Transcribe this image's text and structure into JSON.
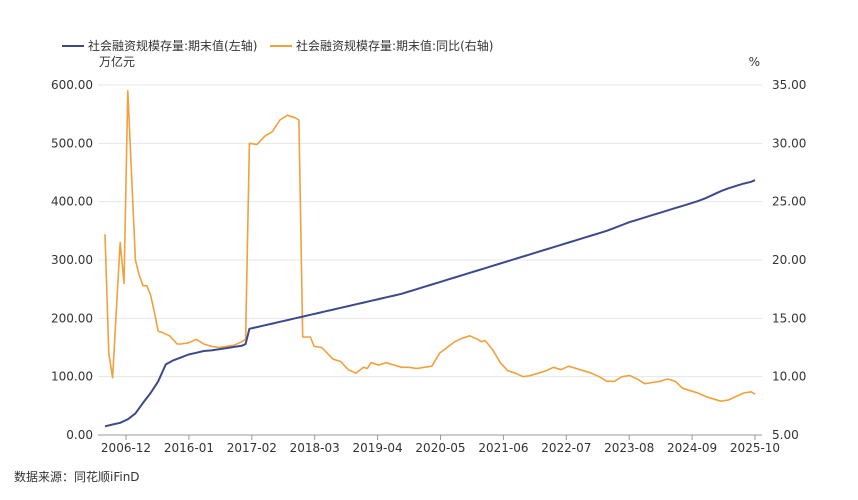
{
  "chart_data": {
    "type": "line",
    "legend": {
      "placement": "top-left",
      "items": [
        {
          "name": "社会融资规模存量:期末值(左轴)",
          "color": "#3c4a8c"
        },
        {
          "name": "社会融资规模存量:期末值:同比(右轴)",
          "color": "#f0a13c"
        }
      ]
    },
    "left_axis": {
      "unit": "万亿元",
      "ylim": [
        0,
        600
      ],
      "ticks": [
        "0.00",
        "100.00",
        "200.00",
        "300.00",
        "400.00",
        "500.00",
        "600.00"
      ]
    },
    "right_axis": {
      "unit": "%",
      "ylim": [
        5,
        35
      ],
      "ticks": [
        "5.00",
        "10.00",
        "15.00",
        "20.00",
        "25.00",
        "30.00",
        "35.00"
      ]
    },
    "x_axis": {
      "range": [
        "2002-12",
        "2025-10"
      ],
      "ticks": [
        "2006-12",
        "2016-01",
        "2017-02",
        "2018-03",
        "2019-04",
        "2020-05",
        "2021-06",
        "2022-07",
        "2023-08",
        "2024-09",
        "2025-10"
      ]
    },
    "grid": true,
    "series": [
      {
        "name": "社会融资规模存量:期末值(左轴)",
        "axis": "left",
        "color": "#3c4a8c",
        "points": [
          [
            0,
            15
          ],
          [
            2,
            18
          ],
          [
            4,
            21
          ],
          [
            6,
            27
          ],
          [
            8,
            37
          ],
          [
            10,
            55
          ],
          [
            12,
            72
          ],
          [
            14,
            92
          ],
          [
            16,
            121
          ],
          [
            18,
            128
          ],
          [
            20,
            133
          ],
          [
            22,
            138
          ],
          [
            24,
            141
          ],
          [
            26,
            144
          ],
          [
            28,
            145
          ],
          [
            30,
            147
          ],
          [
            32,
            149
          ],
          [
            34,
            151
          ],
          [
            36,
            153
          ],
          [
            37,
            156
          ],
          [
            38,
            182
          ],
          [
            40,
            185
          ],
          [
            42,
            188
          ],
          [
            44,
            191
          ],
          [
            46,
            194
          ],
          [
            48,
            197
          ],
          [
            50,
            200
          ],
          [
            52,
            203
          ],
          [
            54,
            206
          ],
          [
            56,
            209
          ],
          [
            58,
            212
          ],
          [
            60,
            215
          ],
          [
            62,
            218
          ],
          [
            64,
            221
          ],
          [
            66,
            224
          ],
          [
            68,
            227
          ],
          [
            70,
            230
          ],
          [
            72,
            233
          ],
          [
            74,
            236
          ],
          [
            76,
            239
          ],
          [
            78,
            242
          ],
          [
            80,
            246
          ],
          [
            82,
            250
          ],
          [
            84,
            254
          ],
          [
            86,
            258
          ],
          [
            88,
            262
          ],
          [
            90,
            266
          ],
          [
            92,
            270
          ],
          [
            94,
            274
          ],
          [
            96,
            278
          ],
          [
            98,
            282
          ],
          [
            100,
            286
          ],
          [
            102,
            290
          ],
          [
            104,
            294
          ],
          [
            106,
            298
          ],
          [
            108,
            302
          ],
          [
            110,
            306
          ],
          [
            112,
            310
          ],
          [
            114,
            314
          ],
          [
            116,
            318
          ],
          [
            118,
            322
          ],
          [
            120,
            326
          ],
          [
            122,
            330
          ],
          [
            124,
            334
          ],
          [
            126,
            338
          ],
          [
            128,
            342
          ],
          [
            130,
            346
          ],
          [
            132,
            350
          ],
          [
            134,
            355
          ],
          [
            136,
            360
          ],
          [
            138,
            365
          ],
          [
            140,
            369
          ],
          [
            142,
            373
          ],
          [
            144,
            377
          ],
          [
            146,
            381
          ],
          [
            148,
            385
          ],
          [
            150,
            389
          ],
          [
            152,
            393
          ],
          [
            154,
            397
          ],
          [
            156,
            401
          ],
          [
            158,
            406
          ],
          [
            160,
            412
          ],
          [
            162,
            418
          ],
          [
            164,
            423
          ],
          [
            166,
            427
          ],
          [
            168,
            431
          ],
          [
            170,
            434
          ],
          [
            171,
            437
          ]
        ]
      },
      {
        "name": "社会融资规模存量:期末值:同比(右轴)",
        "axis": "right",
        "color": "#f0a13c",
        "points": [
          [
            0,
            22.2
          ],
          [
            1,
            12.0
          ],
          [
            2,
            9.9
          ],
          [
            3,
            15.8
          ],
          [
            4,
            21.5
          ],
          [
            5,
            18.0
          ],
          [
            6,
            34.5
          ],
          [
            8,
            20.0
          ],
          [
            9,
            18.7
          ],
          [
            10,
            17.8
          ],
          [
            11,
            17.8
          ],
          [
            12,
            17.0
          ],
          [
            13,
            15.5
          ],
          [
            14,
            13.9
          ],
          [
            15,
            13.8
          ],
          [
            17,
            13.5
          ],
          [
            19,
            12.8
          ],
          [
            20,
            12.8
          ],
          [
            22,
            12.9
          ],
          [
            24,
            13.2
          ],
          [
            26,
            12.8
          ],
          [
            28,
            12.6
          ],
          [
            30,
            12.5
          ],
          [
            32,
            12.6
          ],
          [
            34,
            12.7
          ],
          [
            36,
            13.0
          ],
          [
            37,
            13.2
          ],
          [
            38,
            30.0
          ],
          [
            40,
            29.9
          ],
          [
            42,
            30.6
          ],
          [
            44,
            31.0
          ],
          [
            46,
            32.0
          ],
          [
            48,
            32.4
          ],
          [
            50,
            32.2
          ],
          [
            51,
            32.0
          ],
          [
            52,
            13.4
          ],
          [
            54,
            13.4
          ],
          [
            55,
            12.6
          ],
          [
            57,
            12.5
          ],
          [
            60,
            11.5
          ],
          [
            62,
            11.3
          ],
          [
            64,
            10.6
          ],
          [
            66,
            10.3
          ],
          [
            68,
            10.8
          ],
          [
            69,
            10.7
          ],
          [
            70,
            11.2
          ],
          [
            72,
            11.0
          ],
          [
            74,
            11.2
          ],
          [
            76,
            11.0
          ],
          [
            78,
            10.8
          ],
          [
            80,
            10.8
          ],
          [
            82,
            10.7
          ],
          [
            84,
            10.8
          ],
          [
            86,
            10.9
          ],
          [
            88,
            12.0
          ],
          [
            90,
            12.5
          ],
          [
            92,
            13.0
          ],
          [
            94,
            13.3
          ],
          [
            96,
            13.5
          ],
          [
            98,
            13.2
          ],
          [
            99,
            13.0
          ],
          [
            100,
            13.1
          ],
          [
            102,
            12.3
          ],
          [
            104,
            11.2
          ],
          [
            106,
            10.5
          ],
          [
            108,
            10.3
          ],
          [
            110,
            10.0
          ],
          [
            112,
            10.1
          ],
          [
            114,
            10.3
          ],
          [
            116,
            10.5
          ],
          [
            118,
            10.8
          ],
          [
            120,
            10.6
          ],
          [
            122,
            10.9
          ],
          [
            124,
            10.7
          ],
          [
            126,
            10.5
          ],
          [
            128,
            10.3
          ],
          [
            130,
            10.0
          ],
          [
            132,
            9.6
          ],
          [
            134,
            9.6
          ],
          [
            136,
            10.0
          ],
          [
            138,
            10.1
          ],
          [
            140,
            9.8
          ],
          [
            142,
            9.4
          ],
          [
            144,
            9.5
          ],
          [
            146,
            9.6
          ],
          [
            148,
            9.8
          ],
          [
            150,
            9.6
          ],
          [
            152,
            9.0
          ],
          [
            154,
            8.8
          ],
          [
            156,
            8.6
          ],
          [
            158,
            8.3
          ],
          [
            160,
            8.1
          ],
          [
            162,
            7.9
          ],
          [
            164,
            8.0
          ],
          [
            166,
            8.3
          ],
          [
            168,
            8.6
          ],
          [
            170,
            8.7
          ],
          [
            171,
            8.5
          ]
        ]
      }
    ]
  },
  "footer": {
    "source": "数据来源：同花顺iFinD"
  }
}
